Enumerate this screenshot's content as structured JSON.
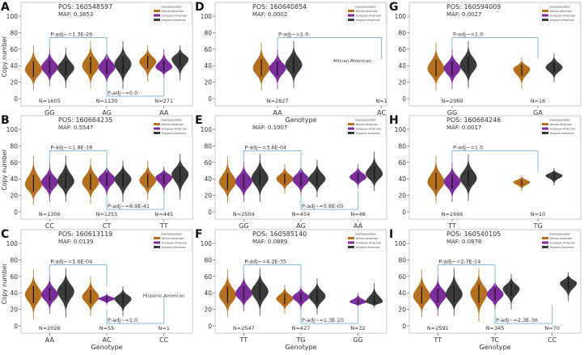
{
  "colors": {
    "African-American": "#b5701f",
    "European-American": "#7b2d9b",
    "Hispanic-American": "#3b3b3b",
    "bracket": "#8fb8d8",
    "frame": "#c8c8c8"
  },
  "legend": {
    "title": "Superpopulation",
    "entries": [
      "African-American",
      "European-American",
      "Hispanic-American"
    ]
  },
  "chart_data": [
    {
      "type": "violin",
      "panel": "A",
      "pos": "POS: 160548597",
      "maf": "MAF: 0.3853",
      "ylabel": "Copy number",
      "xlabel": "",
      "ylim": [
        -8,
        108
      ],
      "yticks": [
        0,
        20,
        40,
        60,
        80,
        100
      ],
      "categories": [
        "GG",
        "AG",
        "AA"
      ],
      "xlim": [
        -0.5,
        2.5
      ],
      "n": [
        "N=1605",
        "N=1130",
        "N=271"
      ],
      "violins": [
        [
          [
            35,
            10,
            65
          ],
          [
            38,
            15,
            62
          ],
          [
            37,
            13,
            62
          ]
        ],
        [
          [
            40,
            12,
            70
          ],
          [
            38,
            15,
            62
          ],
          [
            42,
            12,
            70
          ]
        ],
        [
          [
            45,
            20,
            65
          ],
          [
            38,
            25,
            60
          ],
          [
            48,
            22,
            65
          ]
        ]
      ],
      "brackets": [
        {
          "from": 0,
          "to": 1,
          "y": 74,
          "label": "P-adj~=1.3E-26"
        },
        {
          "from": 1,
          "to": 2,
          "y": 3,
          "label": "P-adj~=0.0"
        }
      ],
      "notes": []
    },
    {
      "type": "violin",
      "panel": "B",
      "pos": "POS: 160664235",
      "maf": "MAF: 0.5547",
      "ylabel": "Copy number",
      "xlabel": "",
      "ylim": [
        -8,
        108
      ],
      "yticks": [
        0,
        20,
        40,
        60,
        80,
        100
      ],
      "categories": [
        "CC",
        "CT",
        "TT"
      ],
      "xlim": [
        -0.5,
        2.5
      ],
      "n": [
        "N=1306",
        "N=1255",
        "N=445"
      ],
      "violins": [
        [
          [
            33,
            8,
            68
          ],
          [
            36,
            12,
            60
          ],
          [
            37,
            12,
            68
          ]
        ],
        [
          [
            36,
            10,
            65
          ],
          [
            40,
            15,
            60
          ],
          [
            40,
            12,
            62
          ]
        ],
        [
          [
            38,
            15,
            62
          ],
          [
            42,
            20,
            55
          ],
          [
            46,
            15,
            70
          ]
        ]
      ],
      "brackets": [
        {
          "from": 0,
          "to": 1,
          "y": 74,
          "label": "P-adj~=1.8E-18"
        },
        {
          "from": 1,
          "to": 2,
          "y": 3,
          "label": "P-adj~=8.9E-41"
        }
      ],
      "notes": []
    },
    {
      "type": "violin",
      "panel": "C",
      "pos": "POS: 160613119",
      "maf": "MAF: 0.0139",
      "ylabel": "Copy number",
      "xlabel": "Genotype",
      "ylim": [
        -8,
        108
      ],
      "yticks": [
        0,
        20,
        40,
        60,
        80,
        100
      ],
      "categories": [
        "AA",
        "AC",
        "CC"
      ],
      "xlim": [
        -0.5,
        2.5
      ],
      "n": [
        "N=2028",
        "N=55",
        "N=1"
      ],
      "violins": [
        [
          [
            38,
            8,
            68
          ],
          [
            38,
            15,
            62
          ],
          [
            42,
            10,
            70
          ]
        ],
        [
          [
            35,
            12,
            60
          ],
          [
            33,
            25,
            40
          ],
          [
            33,
            12,
            48
          ]
        ],
        [
          null,
          null,
          null
        ]
      ],
      "brackets": [
        {
          "from": 0,
          "to": 1,
          "y": 74,
          "label": "P-adj~=1.6E-04"
        },
        {
          "from": 1,
          "to": 2,
          "y": 3,
          "label": "P-adj~=1.0"
        }
      ],
      "notes": [
        {
          "text": "Hispanic-American",
          "x": 2.0,
          "y": 35
        }
      ]
    },
    {
      "type": "violin",
      "panel": "D",
      "pos": "POS: 160640854",
      "maf": "MAF: 0.0002",
      "ylabel": "",
      "xlabel": "Genotype",
      "ylim": [
        -8,
        108
      ],
      "yticks": [
        0,
        20,
        40,
        60,
        80,
        100
      ],
      "categories": [
        "AA",
        "AC"
      ],
      "xlim": [
        -0.6,
        1.05
      ],
      "n": [
        "N=2827",
        "N=1"
      ],
      "violins": [
        [
          [
            37,
            10,
            68
          ],
          [
            37,
            12,
            60
          ],
          [
            41,
            13,
            70
          ]
        ],
        [
          null,
          null,
          null
        ]
      ],
      "brackets": [
        {
          "from": 0,
          "to": 1,
          "y": 74,
          "label": "P-adj~=1.0"
        }
      ],
      "notes": [
        {
          "text": "African-American",
          "x": 0.72,
          "y": 44
        }
      ]
    },
    {
      "type": "violin",
      "panel": "E",
      "pos": "",
      "maf": "MAF: 0.1007",
      "ylabel": "",
      "xlabel": "",
      "ylim": [
        -8,
        108
      ],
      "yticks": [
        0,
        20,
        40,
        60,
        80,
        100
      ],
      "categories": [
        "GG",
        "AG",
        "AA"
      ],
      "xlim": [
        -0.5,
        2.5
      ],
      "n": [
        "N=2504",
        "N=454",
        "N=48"
      ],
      "violins": [
        [
          [
            36,
            10,
            67
          ],
          [
            37,
            12,
            62
          ],
          [
            41,
            12,
            70
          ]
        ],
        [
          [
            40,
            22,
            58
          ],
          [
            39,
            18,
            60
          ],
          [
            40,
            18,
            63
          ]
        ],
        [
          null,
          [
            42,
            28,
            58
          ],
          [
            46,
            25,
            73
          ]
        ]
      ],
      "brackets": [
        {
          "from": 0,
          "to": 1,
          "y": 74,
          "label": "P-adj~=3.6E-04"
        },
        {
          "from": 1,
          "to": 2,
          "y": 3,
          "label": "P-adj~=5.8E-05"
        }
      ],
      "notes": []
    },
    {
      "type": "violin",
      "panel": "F",
      "pos": "POS: 160585140",
      "maf": "MAF: 0.0889",
      "ylabel": "",
      "xlabel": "Genotype",
      "ylim": [
        -8,
        108
      ],
      "yticks": [
        0,
        20,
        40,
        60,
        80,
        100
      ],
      "categories": [
        "TT",
        "TG",
        "GG"
      ],
      "xlim": [
        -0.5,
        2.5
      ],
      "n": [
        "N=2547",
        "N=427",
        "N=32"
      ],
      "violins": [
        [
          [
            37,
            10,
            68
          ],
          [
            39,
            18,
            65
          ],
          [
            42,
            12,
            70
          ]
        ],
        [
          [
            33,
            15,
            50
          ],
          [
            35,
            18,
            50
          ],
          [
            36,
            14,
            58
          ]
        ],
        [
          null,
          [
            29,
            22,
            40
          ],
          [
            29,
            22,
            52
          ]
        ]
      ],
      "brackets": [
        {
          "from": 0,
          "to": 1,
          "y": 74,
          "label": "P-adj~=4.2E-35"
        },
        {
          "from": 1,
          "to": 2,
          "y": 3,
          "label": "P-adj~=1.3E-10"
        }
      ],
      "notes": []
    },
    {
      "type": "violin",
      "panel": "G",
      "pos": "POS: 160594009",
      "maf": "MAF: 0.0027",
      "ylabel": "",
      "xlabel": "",
      "ylim": [
        -8,
        108
      ],
      "yticks": [
        0,
        20,
        40,
        60,
        80,
        100
      ],
      "categories": [
        "GG",
        "GA"
      ],
      "xlim": [
        -0.5,
        1.5
      ],
      "n": [
        "N=2989",
        "N=16"
      ],
      "violins": [
        [
          [
            36,
            10,
            68
          ],
          [
            37,
            12,
            60
          ],
          [
            41,
            13,
            70
          ]
        ],
        [
          [
            36,
            12,
            50
          ],
          null,
          [
            38,
            20,
            55
          ]
        ]
      ],
      "brackets": [
        {
          "from": 0,
          "to": 1,
          "y": 74,
          "label": "P-adj~=1.0"
        }
      ],
      "notes": []
    },
    {
      "type": "violin",
      "panel": "H",
      "pos": "POS: 160664246",
      "maf": "MAF: 0.0017",
      "ylabel": "",
      "xlabel": "",
      "ylim": [
        -8,
        108
      ],
      "yticks": [
        0,
        20,
        40,
        60,
        80,
        100
      ],
      "categories": [
        "TT",
        "TG"
      ],
      "xlim": [
        -0.5,
        1.5
      ],
      "n": [
        "N=2996",
        "N=10"
      ],
      "violins": [
        [
          [
            36,
            10,
            68
          ],
          [
            37,
            12,
            60
          ],
          [
            41,
            13,
            70
          ]
        ],
        [
          [
            36,
            25,
            45
          ],
          null,
          [
            44,
            32,
            53
          ]
        ]
      ],
      "brackets": [
        {
          "from": 0,
          "to": 1,
          "y": 74,
          "label": "P-adj~=1.0"
        }
      ],
      "notes": []
    },
    {
      "type": "violin",
      "panel": "I",
      "pos": "POS: 160540105",
      "maf": "MAF: 0.0878",
      "ylabel": "",
      "xlabel": "Genotype",
      "ylim": [
        -8,
        108
      ],
      "yticks": [
        0,
        20,
        40,
        60,
        80,
        100
      ],
      "categories": [
        "TT",
        "TC",
        "CC"
      ],
      "xlim": [
        -0.5,
        2.5
      ],
      "n": [
        "N=2591",
        "N=345",
        "N=70"
      ],
      "violins": [
        [
          [
            36,
            10,
            68
          ],
          [
            37,
            12,
            62
          ],
          [
            38,
            12,
            70
          ]
        ],
        [
          [
            40,
            5,
            70
          ],
          [
            38,
            18,
            60
          ],
          [
            45,
            20,
            63
          ]
        ],
        [
          null,
          null,
          [
            52,
            30,
            65
          ]
        ]
      ],
      "brackets": [
        {
          "from": 0,
          "to": 1,
          "y": 74,
          "label": "P-adj~=2.7E-14"
        },
        {
          "from": 1,
          "to": 2,
          "y": 3,
          "label": "P-adj~=2.3E-36"
        }
      ],
      "notes": []
    }
  ]
}
